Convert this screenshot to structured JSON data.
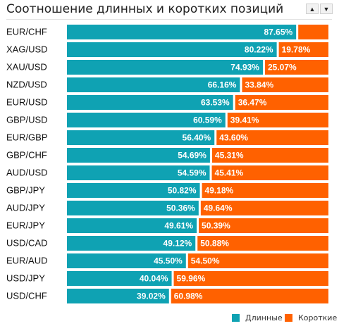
{
  "header": {
    "title": "Соотношение длинных и коротких позиций",
    "sort_up_icon": "▲",
    "sort_down_icon": "▼"
  },
  "colors": {
    "long": "#0fa2b3",
    "short": "#ff6100",
    "label_text": "#111111",
    "value_text": "#ffffff"
  },
  "legend": {
    "long_label": "Длинные",
    "short_label": "Короткие"
  },
  "chart_data": {
    "type": "bar",
    "orientation": "horizontal",
    "stacked": true,
    "categories": [
      "EUR/CHF",
      "XAG/USD",
      "XAU/USD",
      "NZD/USD",
      "EUR/USD",
      "GBP/USD",
      "EUR/GBP",
      "GBP/CHF",
      "AUD/USD",
      "GBP/JPY",
      "AUD/JPY",
      "EUR/JPY",
      "USD/CAD",
      "EUR/AUD",
      "USD/JPY",
      "USD/CHF"
    ],
    "series": [
      {
        "name": "Длинные",
        "values": [
          87.65,
          80.22,
          74.93,
          66.16,
          63.53,
          60.59,
          56.4,
          54.69,
          54.59,
          50.82,
          50.36,
          49.61,
          49.12,
          45.5,
          40.04,
          39.02
        ],
        "labels": [
          "87.65%",
          "80.22%",
          "74.93%",
          "66.16%",
          "63.53%",
          "60.59%",
          "56.40%",
          "54.69%",
          "54.59%",
          "50.82%",
          "50.36%",
          "49.61%",
          "49.12%",
          "45.50%",
          "40.04%",
          "39.02%"
        ]
      },
      {
        "name": "Короткие",
        "values": [
          12.35,
          19.78,
          25.07,
          33.84,
          36.47,
          39.41,
          43.6,
          45.31,
          45.41,
          49.18,
          49.64,
          50.39,
          50.88,
          54.5,
          59.96,
          60.98
        ],
        "labels": [
          "",
          "19.78%",
          "25.07%",
          "33.84%",
          "36.47%",
          "39.41%",
          "43.60%",
          "45.31%",
          "45.41%",
          "49.18%",
          "49.64%",
          "50.39%",
          "50.88%",
          "54.50%",
          "59.96%",
          "60.98%"
        ]
      }
    ],
    "xlim": [
      0,
      100
    ],
    "grid": false,
    "legend_position": "bottom-right"
  }
}
